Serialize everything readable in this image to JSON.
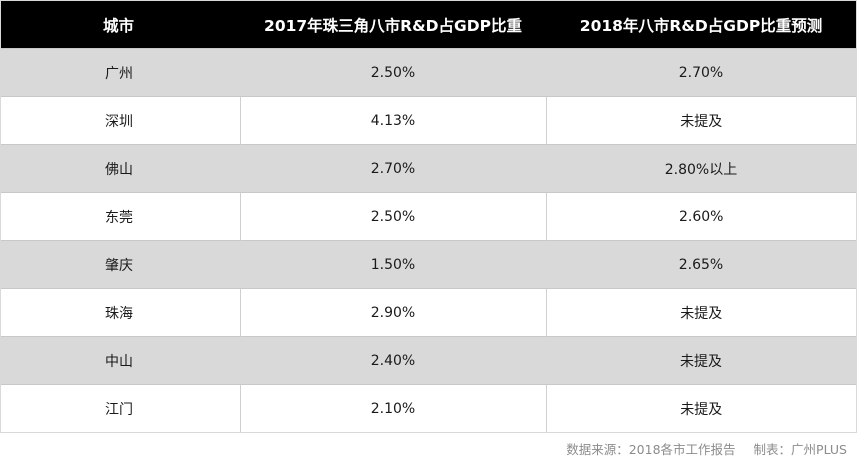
{
  "chart_data": {
    "type": "table",
    "columns": [
      "城市",
      "2017年珠三角八市R&D占GDP比重",
      "2018年八市R&D占GDP比重预测"
    ],
    "rows": [
      {
        "city": "广州",
        "y2017": "2.50%",
        "y2018": "2.70%"
      },
      {
        "city": "深圳",
        "y2017": "4.13%",
        "y2018": "未提及"
      },
      {
        "city": "佛山",
        "y2017": "2.70%",
        "y2018": "2.80%以上"
      },
      {
        "city": "东莞",
        "y2017": "2.50%",
        "y2018": "2.60%"
      },
      {
        "city": "肇庆",
        "y2017": "1.50%",
        "y2018": "2.65%"
      },
      {
        "city": "珠海",
        "y2017": "2.90%",
        "y2018": "未提及"
      },
      {
        "city": "中山",
        "y2017": "2.40%",
        "y2018": "未提及"
      },
      {
        "city": "江门",
        "y2017": "2.10%",
        "y2018": "未提及"
      }
    ]
  },
  "footer": {
    "source": "数据来源：2018各市工作报告",
    "credit": "制表：广州PLUS"
  },
  "colors": {
    "header_bg": "#000000",
    "header_text": "#ffffff",
    "stripe": "#d9d9d9",
    "footer_text": "#8c8c8c"
  }
}
